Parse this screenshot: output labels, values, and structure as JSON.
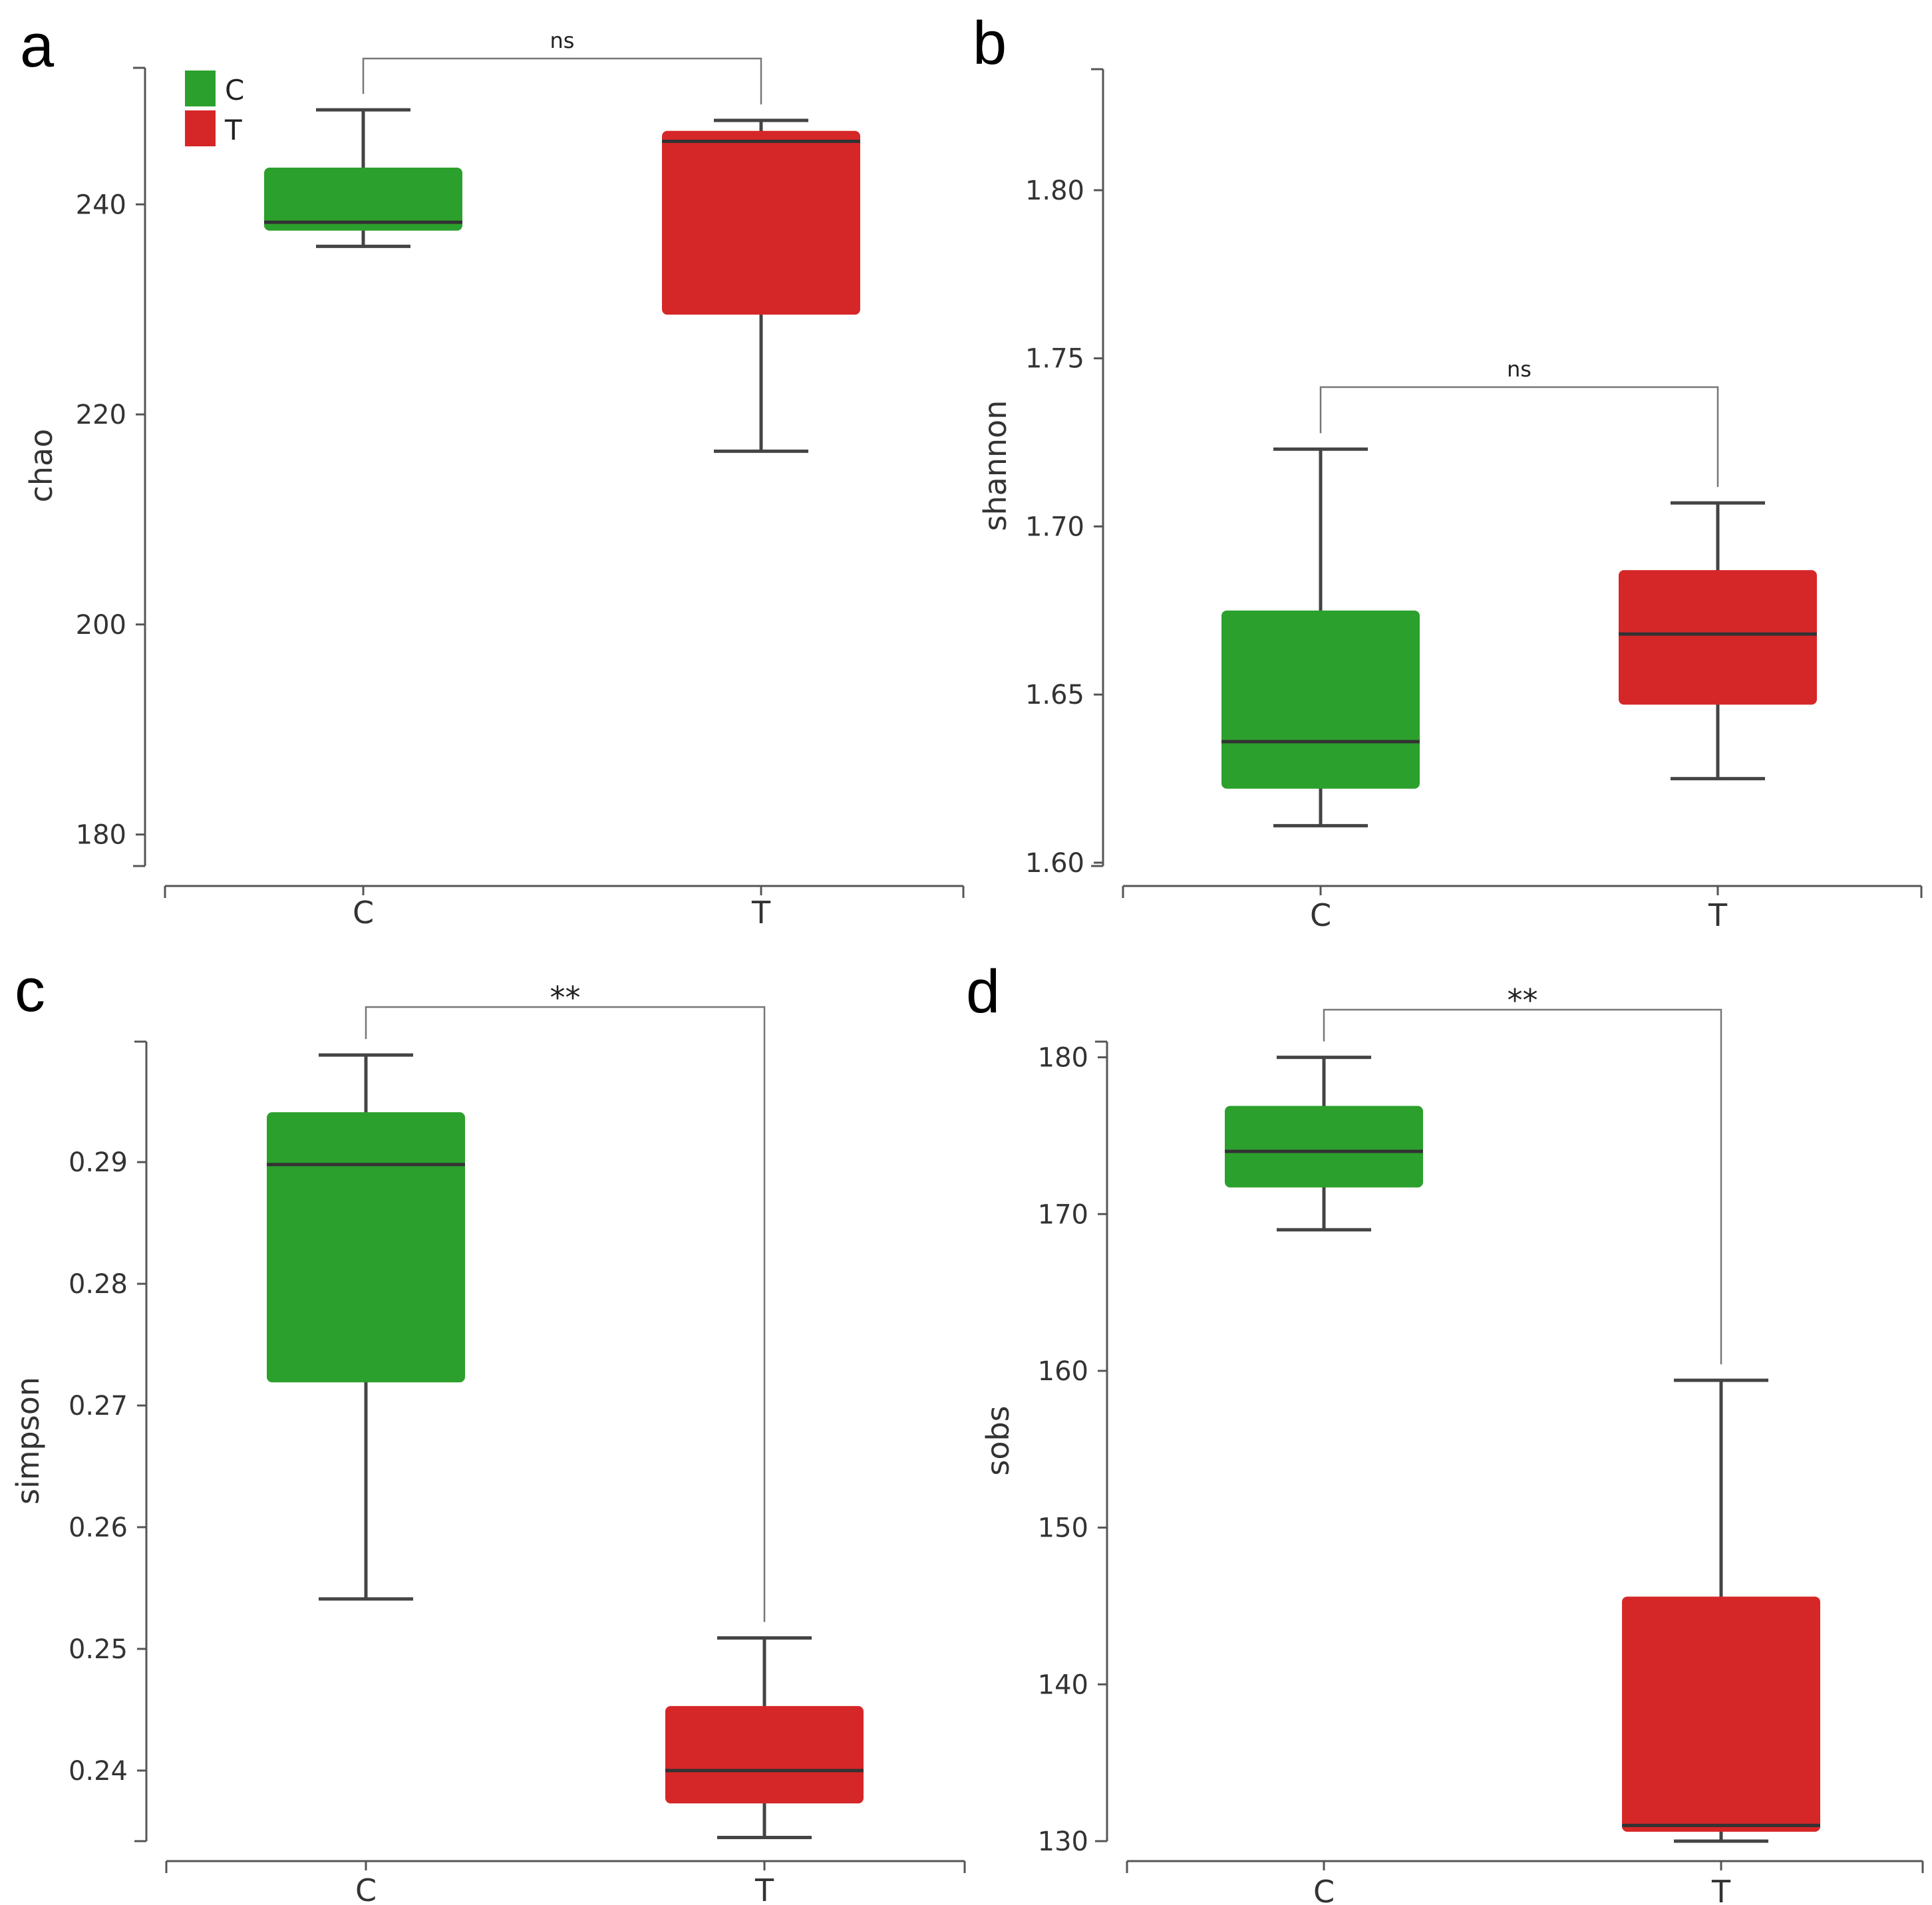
{
  "colors": {
    "C": "#2ca02c",
    "T": "#d62728",
    "axis": "#555555",
    "median": "#333333",
    "whisker": "#444444",
    "bracket": "#777777"
  },
  "legend": {
    "items": [
      {
        "label": "C",
        "color": "#2ca02c"
      },
      {
        "label": "T",
        "color": "#d62728"
      }
    ]
  },
  "chart_data": [
    {
      "panel": "a",
      "type": "box",
      "ylabel": "chao",
      "categories": [
        "C",
        "T"
      ],
      "yticks": [
        "180",
        "200",
        "220",
        "240"
      ],
      "ylim": [
        177,
        253
      ],
      "boxes": [
        {
          "group": "C",
          "min": 236,
          "q1": 237.5,
          "median": 238.3,
          "q3": 243.5,
          "max": 249
        },
        {
          "group": "T",
          "min": 216.5,
          "q1": 229.5,
          "median": 246,
          "q3": 247,
          "max": 248
        }
      ],
      "significance": "ns",
      "legend": true
    },
    {
      "panel": "b",
      "type": "box",
      "ylabel": "shannon",
      "categories": [
        "C",
        "T"
      ],
      "yticks": [
        "1.60",
        "1.65",
        "1.70",
        "1.75",
        "1.80"
      ],
      "ylim": [
        1.599,
        1.836
      ],
      "boxes": [
        {
          "group": "C",
          "min": 1.611,
          "q1": 1.622,
          "median": 1.636,
          "q3": 1.675,
          "max": 1.723
        },
        {
          "group": "T",
          "min": 1.625,
          "q1": 1.647,
          "median": 1.668,
          "q3": 1.687,
          "max": 1.707
        }
      ],
      "significance": "ns",
      "legend": false
    },
    {
      "panel": "c",
      "type": "box",
      "ylabel": "simpson",
      "categories": [
        "C",
        "T"
      ],
      "yticks": [
        "0.24",
        "0.25",
        "0.26",
        "0.27",
        "0.28",
        "0.29"
      ],
      "ylim": [
        0.2342,
        0.2999
      ],
      "boxes": [
        {
          "group": "C",
          "min": 0.2541,
          "q1": 0.2719,
          "median": 0.2898,
          "q3": 0.2941,
          "max": 0.2988
        },
        {
          "group": "T",
          "min": 0.2345,
          "q1": 0.2373,
          "median": 0.24,
          "q3": 0.2453,
          "max": 0.2509
        }
      ],
      "significance": "**",
      "legend": false
    },
    {
      "panel": "d",
      "type": "box",
      "ylabel": "sobs",
      "categories": [
        "C",
        "T"
      ],
      "yticks": [
        "130",
        "140",
        "150",
        "160",
        "170",
        "180"
      ],
      "ylim": [
        130,
        181
      ],
      "boxes": [
        {
          "group": "C",
          "min": 169,
          "q1": 171.7,
          "median": 174,
          "q3": 176.9,
          "max": 180
        },
        {
          "group": "T",
          "min": 130,
          "q1": 130.6,
          "median": 131,
          "q3": 145.6,
          "max": 159.4
        }
      ],
      "significance": "**",
      "legend": false
    }
  ]
}
